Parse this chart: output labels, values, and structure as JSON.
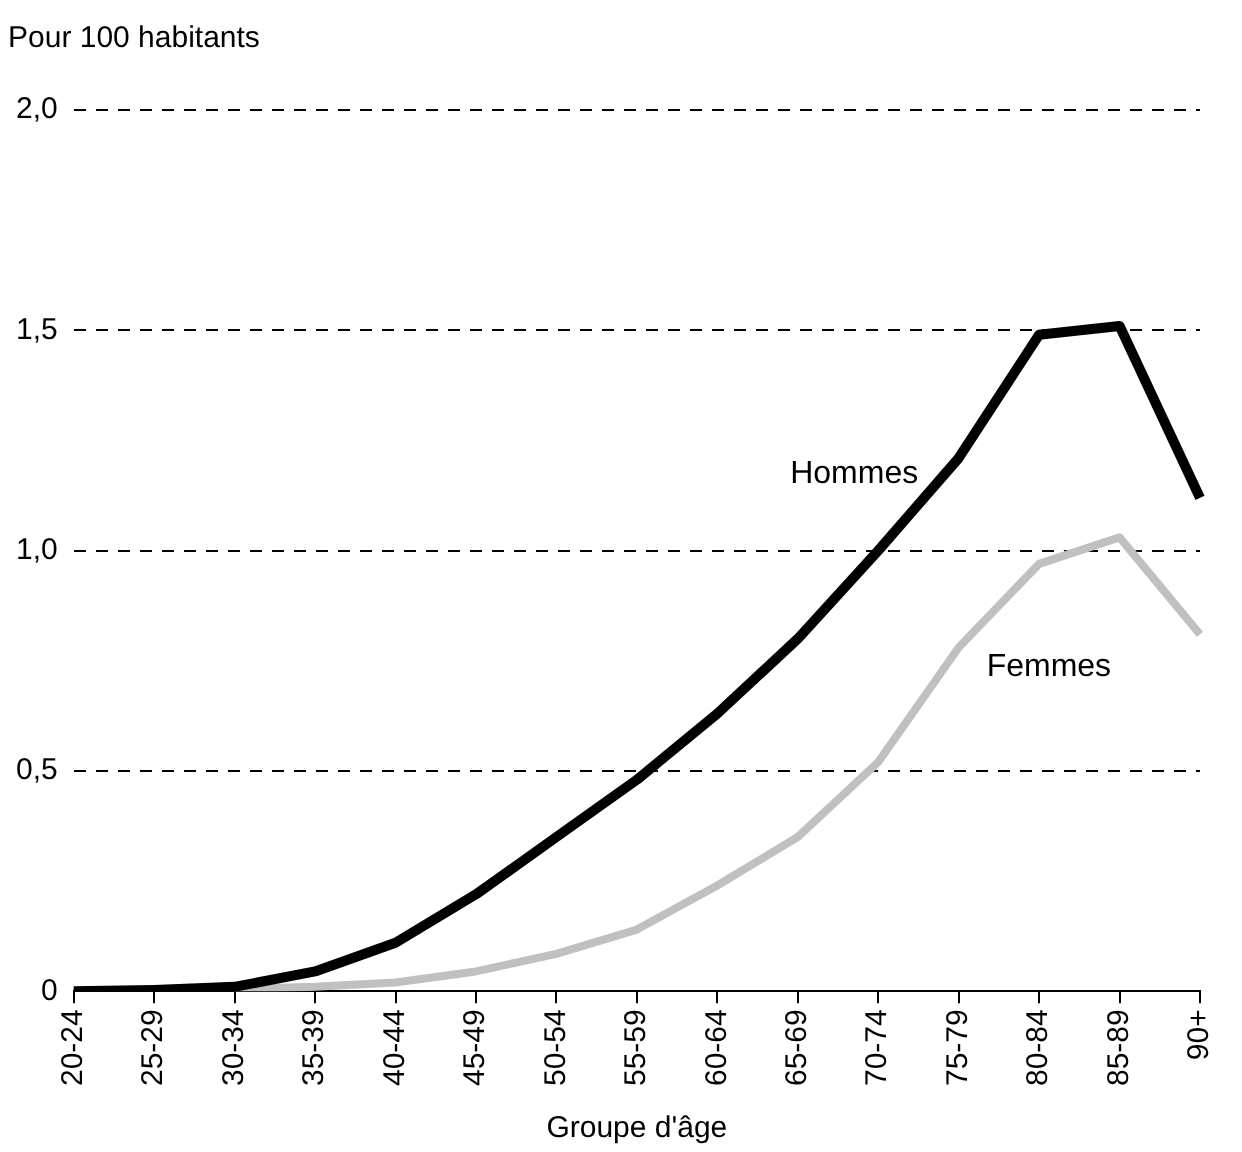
{
  "chart_data": {
    "type": "line",
    "ylabel": "Pour 100 habitants",
    "xlabel": "Groupe d'âge",
    "categories": [
      "20-24",
      "25-29",
      "30-34",
      "35-39",
      "40-44",
      "45-49",
      "50-54",
      "55-59",
      "60-64",
      "65-69",
      "70-74",
      "75-79",
      "80-84",
      "85-89",
      "90+"
    ],
    "series": [
      {
        "name": "Hommes",
        "color": "#000000",
        "values": [
          0,
          0.003,
          0.01,
          0.045,
          0.11,
          0.22,
          0.35,
          0.48,
          0.63,
          0.8,
          1.0,
          1.21,
          1.49,
          1.51,
          1.12
        ]
      },
      {
        "name": "Femmes",
        "color": "#c0c0c0",
        "values": [
          null,
          null,
          0.005,
          0.01,
          0.02,
          0.045,
          0.085,
          0.14,
          0.24,
          0.35,
          0.52,
          0.78,
          0.97,
          1.03,
          0.81
        ]
      }
    ],
    "ylim": [
      0,
      2
    ],
    "yticks": [
      0,
      {
        "value": 0.5,
        "label": "0,5"
      },
      {
        "value": 1,
        "label": "1,0"
      },
      {
        "value": 1.5,
        "label": "1,5"
      },
      {
        "value": 2,
        "label": "2,0"
      }
    ],
    "grid": "y",
    "legend": false,
    "marker": "none",
    "line_style": "solid"
  }
}
